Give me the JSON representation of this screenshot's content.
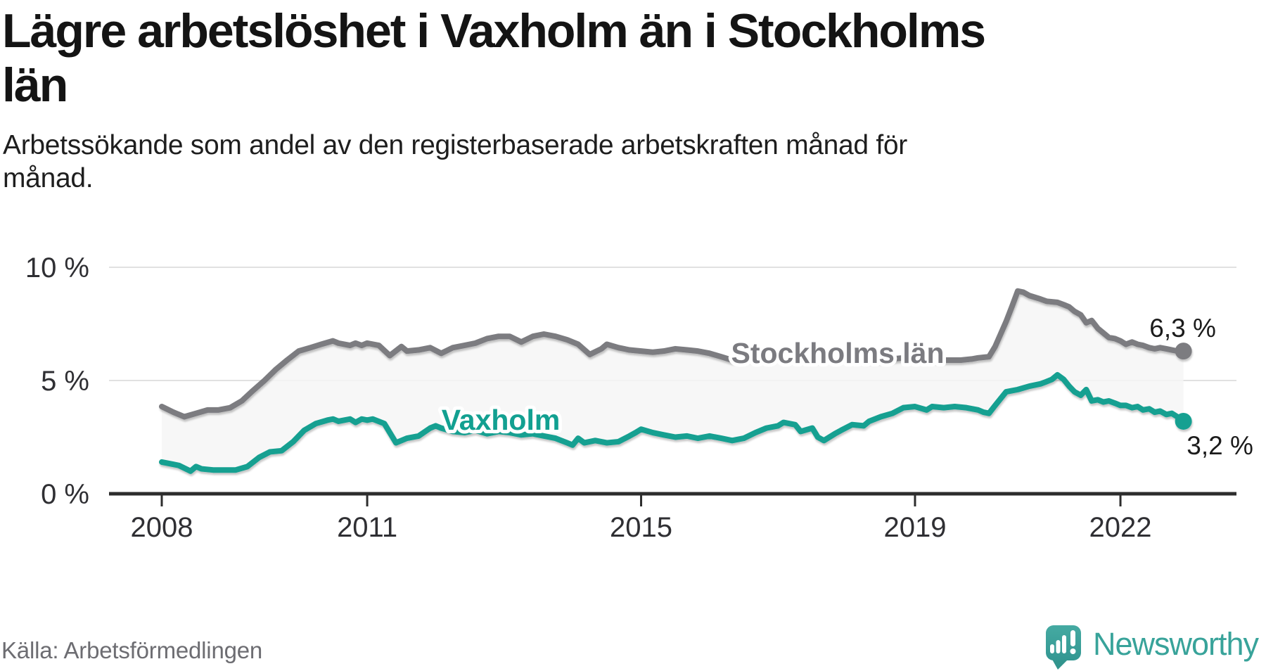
{
  "header": {
    "title_lines": [
      "Lägre arbetslöshet i Vaxholm än i Stockholms",
      "län"
    ],
    "subtitle_lines": [
      "Arbetssökande som andel av den registerbaserade arbetskraften månad för",
      "månad."
    ]
  },
  "footer": {
    "source": "Källa: Arbetsförmedlingen",
    "brand": "Newsworthy"
  },
  "colors": {
    "stockholm_line": "#7b7b80",
    "vaxholm_line": "#12a091",
    "area_fill": "#f5f5f5",
    "axis": "#2d2d2d",
    "gridline": "#e1e1e1",
    "brand_teal": "#38a39a"
  },
  "chart_data": {
    "type": "line",
    "title": "Lägre arbetslöshet i Vaxholm än i Stockholms län",
    "unit": "%",
    "grid": true,
    "area_between_series": true,
    "x_axis": {
      "range": [
        2008,
        2022.92
      ],
      "ticks": [
        {
          "value": 2008,
          "label": "2008"
        },
        {
          "value": 2011,
          "label": "2011"
        },
        {
          "value": 2015,
          "label": "2015"
        },
        {
          "value": 2019,
          "label": "2019"
        },
        {
          "value": 2022,
          "label": "2022"
        }
      ]
    },
    "y_axis": {
      "range": [
        0,
        10
      ],
      "ticks": [
        {
          "value": 10,
          "label": "10 %"
        },
        {
          "value": 5,
          "label": "5 %"
        },
        {
          "value": 0,
          "label": "0 %"
        }
      ]
    },
    "series": [
      {
        "name": "Stockholms län",
        "color": "#7b7b80",
        "end_value": 6.3,
        "end_label": "6,3 %",
        "points": [
          [
            2008.0,
            3.85
          ],
          [
            2008.17,
            3.6
          ],
          [
            2008.33,
            3.4
          ],
          [
            2008.5,
            3.55
          ],
          [
            2008.67,
            3.7
          ],
          [
            2008.83,
            3.7
          ],
          [
            2009.0,
            3.8
          ],
          [
            2009.17,
            4.1
          ],
          [
            2009.33,
            4.55
          ],
          [
            2009.5,
            5.0
          ],
          [
            2009.67,
            5.5
          ],
          [
            2009.83,
            5.9
          ],
          [
            2010.0,
            6.3
          ],
          [
            2010.17,
            6.45
          ],
          [
            2010.33,
            6.6
          ],
          [
            2010.5,
            6.75
          ],
          [
            2010.58,
            6.65
          ],
          [
            2010.75,
            6.55
          ],
          [
            2010.83,
            6.65
          ],
          [
            2010.92,
            6.55
          ],
          [
            2011.0,
            6.65
          ],
          [
            2011.17,
            6.55
          ],
          [
            2011.33,
            6.1
          ],
          [
            2011.5,
            6.5
          ],
          [
            2011.58,
            6.3
          ],
          [
            2011.75,
            6.35
          ],
          [
            2011.92,
            6.45
          ],
          [
            2012.08,
            6.2
          ],
          [
            2012.25,
            6.45
          ],
          [
            2012.42,
            6.55
          ],
          [
            2012.58,
            6.65
          ],
          [
            2012.75,
            6.85
          ],
          [
            2012.92,
            6.95
          ],
          [
            2013.08,
            6.95
          ],
          [
            2013.25,
            6.7
          ],
          [
            2013.42,
            6.95
          ],
          [
            2013.58,
            7.05
          ],
          [
            2013.75,
            6.95
          ],
          [
            2013.92,
            6.8
          ],
          [
            2014.08,
            6.6
          ],
          [
            2014.25,
            6.15
          ],
          [
            2014.42,
            6.4
          ],
          [
            2014.5,
            6.6
          ],
          [
            2014.67,
            6.45
          ],
          [
            2014.83,
            6.35
          ],
          [
            2015.0,
            6.3
          ],
          [
            2015.17,
            6.25
          ],
          [
            2015.33,
            6.3
          ],
          [
            2015.5,
            6.4
          ],
          [
            2015.67,
            6.35
          ],
          [
            2015.83,
            6.3
          ],
          [
            2016.0,
            6.2
          ],
          [
            2016.17,
            6.05
          ],
          [
            2016.33,
            5.9
          ],
          [
            2016.5,
            5.95
          ],
          [
            2016.67,
            6.0
          ],
          [
            2016.83,
            6.05
          ],
          [
            2017.0,
            6.05
          ],
          [
            2017.17,
            6.0
          ],
          [
            2017.33,
            5.95
          ],
          [
            2017.5,
            5.9
          ],
          [
            2017.67,
            5.95
          ],
          [
            2017.83,
            6.0
          ],
          [
            2018.0,
            6.0
          ],
          [
            2018.17,
            5.95
          ],
          [
            2018.33,
            5.9
          ],
          [
            2018.5,
            5.9
          ],
          [
            2018.67,
            5.95
          ],
          [
            2018.83,
            6.0
          ],
          [
            2019.0,
            6.0
          ],
          [
            2019.17,
            5.95
          ],
          [
            2019.33,
            5.9
          ],
          [
            2019.5,
            5.9
          ],
          [
            2019.67,
            5.9
          ],
          [
            2019.83,
            5.95
          ],
          [
            2019.92,
            6.0
          ],
          [
            2020.08,
            6.05
          ],
          [
            2020.17,
            6.5
          ],
          [
            2020.33,
            7.6
          ],
          [
            2020.42,
            8.3
          ],
          [
            2020.5,
            8.95
          ],
          [
            2020.58,
            8.9
          ],
          [
            2020.67,
            8.75
          ],
          [
            2020.83,
            8.6
          ],
          [
            2020.92,
            8.5
          ],
          [
            2021.08,
            8.45
          ],
          [
            2021.17,
            8.35
          ],
          [
            2021.25,
            8.25
          ],
          [
            2021.33,
            8.05
          ],
          [
            2021.42,
            7.9
          ],
          [
            2021.5,
            7.55
          ],
          [
            2021.58,
            7.65
          ],
          [
            2021.67,
            7.3
          ],
          [
            2021.75,
            7.1
          ],
          [
            2021.83,
            6.9
          ],
          [
            2021.92,
            6.85
          ],
          [
            2022.0,
            6.75
          ],
          [
            2022.08,
            6.6
          ],
          [
            2022.17,
            6.7
          ],
          [
            2022.25,
            6.6
          ],
          [
            2022.33,
            6.55
          ],
          [
            2022.42,
            6.45
          ],
          [
            2022.5,
            6.4
          ],
          [
            2022.58,
            6.45
          ],
          [
            2022.67,
            6.4
          ],
          [
            2022.75,
            6.35
          ],
          [
            2022.83,
            6.3
          ],
          [
            2022.92,
            6.3
          ]
        ]
      },
      {
        "name": "Vaxholm",
        "color": "#12a091",
        "end_value": 3.2,
        "end_label": "3,2 %",
        "points": [
          [
            2008.0,
            1.4
          ],
          [
            2008.17,
            1.3
          ],
          [
            2008.25,
            1.25
          ],
          [
            2008.42,
            1.0
          ],
          [
            2008.5,
            1.2
          ],
          [
            2008.58,
            1.1
          ],
          [
            2008.75,
            1.05
          ],
          [
            2008.92,
            1.05
          ],
          [
            2009.08,
            1.05
          ],
          [
            2009.25,
            1.2
          ],
          [
            2009.42,
            1.6
          ],
          [
            2009.58,
            1.85
          ],
          [
            2009.75,
            1.9
          ],
          [
            2009.92,
            2.3
          ],
          [
            2010.08,
            2.8
          ],
          [
            2010.25,
            3.1
          ],
          [
            2010.42,
            3.25
          ],
          [
            2010.5,
            3.3
          ],
          [
            2010.58,
            3.2
          ],
          [
            2010.75,
            3.3
          ],
          [
            2010.83,
            3.15
          ],
          [
            2010.92,
            3.3
          ],
          [
            2011.0,
            3.25
          ],
          [
            2011.08,
            3.3
          ],
          [
            2011.25,
            3.1
          ],
          [
            2011.42,
            2.25
          ],
          [
            2011.58,
            2.45
          ],
          [
            2011.75,
            2.55
          ],
          [
            2011.92,
            2.9
          ],
          [
            2012.0,
            3.0
          ],
          [
            2012.08,
            2.9
          ],
          [
            2012.25,
            2.75
          ],
          [
            2012.42,
            2.7
          ],
          [
            2012.58,
            2.8
          ],
          [
            2012.75,
            2.65
          ],
          [
            2012.92,
            2.75
          ],
          [
            2013.08,
            2.7
          ],
          [
            2013.25,
            2.6
          ],
          [
            2013.42,
            2.65
          ],
          [
            2013.58,
            2.55
          ],
          [
            2013.75,
            2.45
          ],
          [
            2013.92,
            2.25
          ],
          [
            2014.0,
            2.15
          ],
          [
            2014.08,
            2.45
          ],
          [
            2014.17,
            2.25
          ],
          [
            2014.33,
            2.35
          ],
          [
            2014.5,
            2.25
          ],
          [
            2014.67,
            2.3
          ],
          [
            2014.83,
            2.55
          ],
          [
            2014.92,
            2.7
          ],
          [
            2015.0,
            2.85
          ],
          [
            2015.17,
            2.7
          ],
          [
            2015.33,
            2.6
          ],
          [
            2015.5,
            2.5
          ],
          [
            2015.67,
            2.55
          ],
          [
            2015.83,
            2.45
          ],
          [
            2016.0,
            2.55
          ],
          [
            2016.17,
            2.45
          ],
          [
            2016.33,
            2.35
          ],
          [
            2016.5,
            2.45
          ],
          [
            2016.67,
            2.7
          ],
          [
            2016.83,
            2.9
          ],
          [
            2017.0,
            3.0
          ],
          [
            2017.08,
            3.15
          ],
          [
            2017.25,
            3.05
          ],
          [
            2017.33,
            2.75
          ],
          [
            2017.5,
            2.9
          ],
          [
            2017.58,
            2.5
          ],
          [
            2017.67,
            2.35
          ],
          [
            2017.83,
            2.65
          ],
          [
            2017.92,
            2.8
          ],
          [
            2018.08,
            3.05
          ],
          [
            2018.25,
            3.0
          ],
          [
            2018.33,
            3.2
          ],
          [
            2018.5,
            3.4
          ],
          [
            2018.67,
            3.55
          ],
          [
            2018.83,
            3.8
          ],
          [
            2019.0,
            3.85
          ],
          [
            2019.17,
            3.7
          ],
          [
            2019.25,
            3.85
          ],
          [
            2019.42,
            3.8
          ],
          [
            2019.58,
            3.85
          ],
          [
            2019.75,
            3.8
          ],
          [
            2019.92,
            3.7
          ],
          [
            2020.0,
            3.6
          ],
          [
            2020.08,
            3.55
          ],
          [
            2020.17,
            3.9
          ],
          [
            2020.25,
            4.2
          ],
          [
            2020.33,
            4.5
          ],
          [
            2020.5,
            4.6
          ],
          [
            2020.67,
            4.75
          ],
          [
            2020.83,
            4.85
          ],
          [
            2020.92,
            4.95
          ],
          [
            2021.0,
            5.05
          ],
          [
            2021.08,
            5.25
          ],
          [
            2021.17,
            5.05
          ],
          [
            2021.25,
            4.75
          ],
          [
            2021.33,
            4.5
          ],
          [
            2021.42,
            4.35
          ],
          [
            2021.5,
            4.6
          ],
          [
            2021.58,
            4.1
          ],
          [
            2021.67,
            4.15
          ],
          [
            2021.75,
            4.05
          ],
          [
            2021.83,
            4.1
          ],
          [
            2021.92,
            4.0
          ],
          [
            2022.0,
            3.9
          ],
          [
            2022.08,
            3.9
          ],
          [
            2022.17,
            3.8
          ],
          [
            2022.25,
            3.85
          ],
          [
            2022.33,
            3.7
          ],
          [
            2022.42,
            3.75
          ],
          [
            2022.5,
            3.6
          ],
          [
            2022.58,
            3.65
          ],
          [
            2022.67,
            3.5
          ],
          [
            2022.75,
            3.55
          ],
          [
            2022.83,
            3.4
          ],
          [
            2022.92,
            3.2
          ]
        ]
      }
    ]
  }
}
